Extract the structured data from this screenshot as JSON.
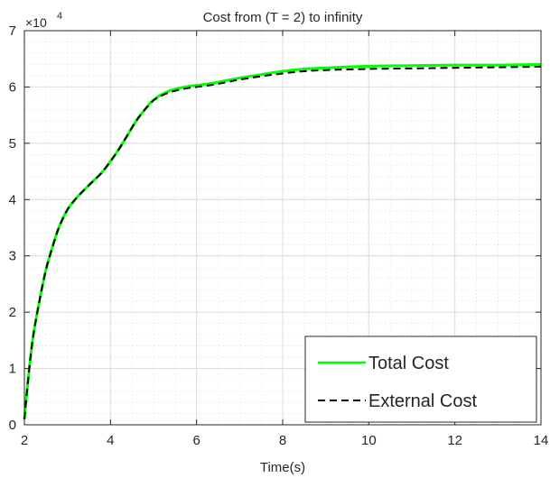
{
  "chart_data": {
    "type": "line",
    "title": "Cost from (T = 2) to infinity",
    "xlabel": "Time(s)",
    "ylabel": "",
    "xlim": [
      2,
      14
    ],
    "ylim": [
      0,
      70000
    ],
    "y_exponent_label": {
      "base": "×10",
      "exponent": "4"
    },
    "x_ticks": [
      2,
      4,
      6,
      8,
      10,
      12,
      14
    ],
    "x_tick_labels": [
      "2",
      "4",
      "6",
      "8",
      "10",
      "12",
      "14"
    ],
    "y_ticks": [
      0,
      10000,
      20000,
      30000,
      40000,
      50000,
      60000,
      70000
    ],
    "y_tick_labels": [
      "0",
      "1",
      "2",
      "3",
      "4",
      "5",
      "6",
      "7"
    ],
    "grid": true,
    "minor_grid": true,
    "legend_position": "bottom-right",
    "series": [
      {
        "name": "Total Cost",
        "color": "#00ff00",
        "style": "solid",
        "x": [
          2.0,
          2.1,
          2.2,
          2.35,
          2.5,
          2.65,
          2.8,
          3.0,
          3.2,
          3.4,
          3.6,
          3.8,
          4.0,
          4.2,
          4.4,
          4.6,
          4.8,
          5.0,
          5.2,
          5.4,
          5.6,
          5.8,
          6.0,
          6.3,
          6.6,
          7.0,
          7.5,
          8.0,
          8.5,
          9.0,
          10.0,
          11.0,
          12.0,
          13.0,
          14.0
        ],
        "y": [
          1000,
          9000,
          15500,
          22000,
          27500,
          31500,
          35000,
          38200,
          40200,
          41800,
          43300,
          44800,
          46800,
          49000,
          51500,
          54000,
          56000,
          57700,
          58700,
          59400,
          59800,
          60100,
          60300,
          60600,
          61000,
          61600,
          62200,
          62800,
          63200,
          63400,
          63700,
          63800,
          63900,
          63900,
          64000
        ]
      },
      {
        "name": "External Cost",
        "color": "#000000",
        "style": "dashed",
        "x": [
          2.0,
          2.1,
          2.2,
          2.35,
          2.5,
          2.65,
          2.8,
          3.0,
          3.2,
          3.4,
          3.6,
          3.8,
          4.0,
          4.2,
          4.4,
          4.6,
          4.8,
          5.0,
          5.2,
          5.4,
          5.6,
          5.8,
          6.0,
          6.3,
          6.6,
          7.0,
          7.5,
          8.0,
          8.5,
          9.0,
          10.0,
          11.0,
          12.0,
          13.0,
          14.0
        ],
        "y": [
          1000,
          9000,
          15500,
          22000,
          27500,
          31500,
          35000,
          38200,
          40200,
          41800,
          43300,
          44800,
          46800,
          49000,
          51500,
          54000,
          56000,
          57600,
          58500,
          59100,
          59500,
          59800,
          60000,
          60300,
          60700,
          61300,
          61900,
          62400,
          62800,
          63000,
          63200,
          63300,
          63400,
          63500,
          63600
        ]
      }
    ]
  }
}
